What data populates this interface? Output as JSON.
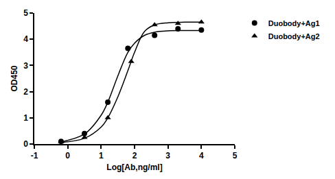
{
  "chart_data": {
    "type": "scatter",
    "x_label": "Log[Ab,ng/ml]",
    "y_label": "OD450",
    "xlim": [
      -1,
      5
    ],
    "xticks": [
      -1,
      0,
      1,
      2,
      3,
      4,
      5
    ],
    "ylim": [
      0,
      5
    ],
    "yticks": [
      0,
      1,
      2,
      3,
      4,
      5
    ],
    "grid": false,
    "legend": "upper right",
    "series": [
      {
        "name": "Duobody+Ag1",
        "color": "#000000",
        "marker": "circle",
        "x": [
          -0.2,
          0.5,
          1.2,
          1.8,
          2.6,
          3.3,
          4.0
        ],
        "values": [
          0.1,
          0.4,
          1.6,
          3.65,
          4.15,
          4.4,
          4.35
        ],
        "curve": {
          "x": [
            -0.2,
            0.5,
            1.0,
            1.2,
            1.5,
            1.8,
            2.0,
            2.3,
            2.6,
            3.0,
            3.5,
            4.0
          ],
          "values": [
            0.08,
            0.38,
            1.1,
            1.6,
            2.6,
            3.5,
            3.85,
            4.15,
            4.27,
            4.32,
            4.33,
            4.33
          ]
        }
      },
      {
        "name": "Duobody+Ag2",
        "color": "#000000",
        "marker": "triangle",
        "x": [
          -0.2,
          0.5,
          1.2,
          1.9,
          2.6,
          3.3,
          4.0
        ],
        "values": [
          0.08,
          0.25,
          1.0,
          3.15,
          4.55,
          4.6,
          4.65
        ],
        "curve": {
          "x": [
            -0.2,
            0.5,
            1.0,
            1.2,
            1.5,
            1.8,
            2.0,
            2.3,
            2.6,
            3.0,
            3.5,
            4.0
          ],
          "values": [
            0.06,
            0.22,
            0.65,
            1.0,
            1.8,
            2.8,
            3.5,
            4.3,
            4.55,
            4.63,
            4.65,
            4.65
          ]
        }
      }
    ]
  }
}
